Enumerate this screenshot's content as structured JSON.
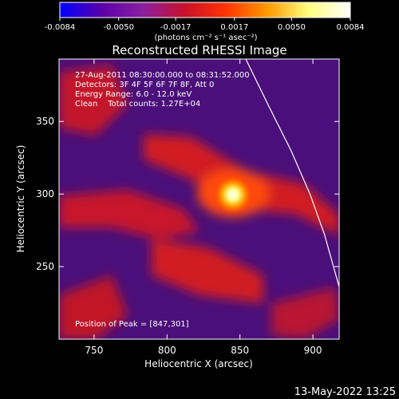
{
  "chart_data": {
    "type": "heatmap",
    "title": "Reconstructed RHESSI Image",
    "xlabel": "Heliocentric X (arcsec)",
    "ylabel": "Heliocentric Y (arcsec)",
    "xlim": [
      726,
      918
    ],
    "ylim": [
      200,
      393
    ],
    "x_ticks": [
      750,
      800,
      850,
      900
    ],
    "y_ticks": [
      250,
      300,
      350
    ],
    "colorbar": {
      "range": [
        -0.0084,
        0.0084
      ],
      "tick_values": [
        -0.0084,
        -0.005,
        -0.0017,
        0.0017,
        0.005,
        0.0084
      ],
      "tick_labels": [
        "-0.0084",
        "-0.0050",
        "-0.0017",
        "0.0017",
        "0.0050",
        "0.0084"
      ],
      "unit_label": "(photons cm⁻² s⁻¹ asec⁻²)",
      "colors": [
        "#0000ff",
        "#5a00a8",
        "#8a1fa0",
        "#c8102a",
        "#ff3300",
        "#ff9a00",
        "#ffff80",
        "#ffffff"
      ]
    },
    "annotations": {
      "time": "27-Aug-2011 08:30:00.000 to 08:31:52.000",
      "detectors": "Detectors: 3F 4F 5F 6F 7F 8F, Att 0",
      "energy": "Energy Range: 6.0 - 12.0 keV",
      "clean": "Clean    Total counts: 1.27E+04",
      "peak": "Position of Peak = [847,301]"
    },
    "peak": {
      "x": 847,
      "y": 301
    },
    "limb_curve": [
      [
        854,
        393
      ],
      [
        870,
        360
      ],
      [
        885,
        330
      ],
      [
        898,
        300
      ],
      [
        908,
        272
      ],
      [
        918,
        236
      ]
    ]
  },
  "footer": {
    "timestamp": "13-May-2022 13:25"
  }
}
